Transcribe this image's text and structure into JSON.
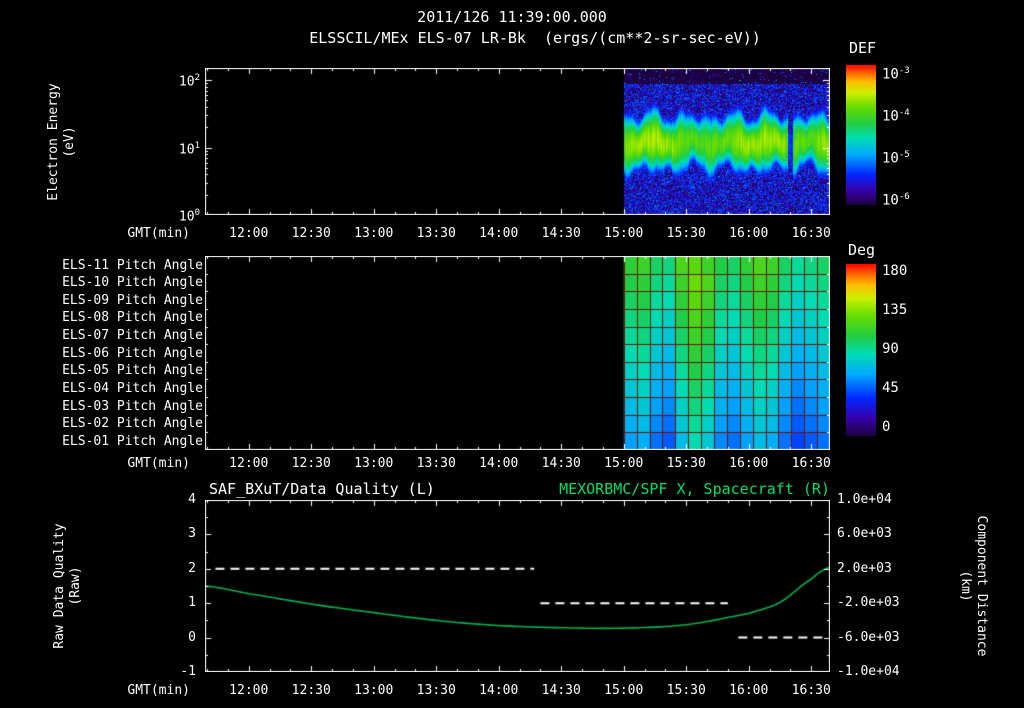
{
  "header": {
    "datetime": "2011/126 11:39:00.000",
    "subtitle": "ELSSCIL/MEx ELS-07 LR-Bk  (ergs/(cm**2-sr-sec-eV))"
  },
  "time_axis": {
    "label": "GMT(min)",
    "start": "11:39",
    "end": "16:39",
    "ticks": [
      "12:00",
      "12:30",
      "13:00",
      "13:30",
      "14:00",
      "14:30",
      "15:00",
      "15:30",
      "16:00",
      "16:30"
    ]
  },
  "colors": {
    "background": "#000000",
    "text": "#ffffff",
    "frame": "#ffffff",
    "green_title": "#00dd66",
    "green_curve": "#00b44c",
    "quality_line": "#ffffff",
    "pitch_grid": "#6b1600"
  },
  "colormap_stops": [
    [
      0,
      "#1c0040"
    ],
    [
      0.1,
      "#3800a8"
    ],
    [
      0.22,
      "#0028ff"
    ],
    [
      0.36,
      "#00aaff"
    ],
    [
      0.48,
      "#00ddb0"
    ],
    [
      0.58,
      "#22cc44"
    ],
    [
      0.7,
      "#66dd00"
    ],
    [
      0.8,
      "#ccee00"
    ],
    [
      0.88,
      "#ffbb00"
    ],
    [
      0.94,
      "#ff6600"
    ],
    [
      1,
      "#ff0000"
    ]
  ],
  "chart_data": [
    {
      "type": "heatmap",
      "name": "electron-energy-spectrogram",
      "title": "ELSSCIL/MEx ELS-07 LR-Bk",
      "units": "ergs/(cm**2-sr-sec-eV)",
      "ylabel_lines": [
        "Electron Energy",
        "(eV)"
      ],
      "yscale": "log",
      "ylim_ev": [
        1,
        150
      ],
      "ytick_exponents": [
        2,
        1,
        0
      ],
      "xlabel": "GMT(min)",
      "colorbar": {
        "label": "DEF",
        "scale": "log",
        "tick_exponents": [
          -3,
          -4,
          -5,
          -6
        ]
      },
      "coverage_start": "15:00",
      "features": {
        "band_center_ev": 12,
        "band_peak_def": 0.00014,
        "background_def": 1e-06,
        "dropout_time": "16:20"
      }
    },
    {
      "type": "heatmap",
      "name": "pitch-angle-grid",
      "rows": [
        "ELS-11 Pitch Angle",
        "ELS-10 Pitch Angle",
        "ELS-09 Pitch Angle",
        "ELS-08 Pitch Angle",
        "ELS-07 Pitch Angle",
        "ELS-06 Pitch Angle",
        "ELS-05 Pitch Angle",
        "ELS-04 Pitch Angle",
        "ELS-03 Pitch Angle",
        "ELS-02 Pitch Angle",
        "ELS-01 Pitch Angle"
      ],
      "xlabel": "GMT(min)",
      "colorbar": {
        "label": "Deg",
        "ticks": [
          180,
          135,
          90,
          45,
          0
        ]
      },
      "coverage_start": "15:00",
      "values_deg": [
        [
          110,
          115,
          100,
          95,
          120,
          125,
          115,
          105,
          100,
          110,
          120,
          115,
          100,
          90,
          95,
          100
        ],
        [
          105,
          110,
          95,
          90,
          115,
          130,
          120,
          100,
          95,
          105,
          115,
          110,
          95,
          85,
          90,
          95
        ],
        [
          100,
          105,
          90,
          85,
          110,
          125,
          115,
          95,
          90,
          100,
          110,
          105,
          90,
          80,
          85,
          90
        ],
        [
          95,
          100,
          85,
          80,
          105,
          120,
          110,
          90,
          85,
          95,
          105,
          100,
          85,
          75,
          80,
          85
        ],
        [
          90,
          95,
          80,
          75,
          100,
          115,
          105,
          85,
          80,
          90,
          100,
          95,
          80,
          70,
          75,
          80
        ],
        [
          85,
          90,
          75,
          70,
          95,
          110,
          100,
          80,
          75,
          85,
          95,
          90,
          75,
          65,
          70,
          75
        ],
        [
          80,
          85,
          70,
          65,
          90,
          105,
          95,
          75,
          70,
          80,
          90,
          85,
          70,
          60,
          65,
          70
        ],
        [
          75,
          80,
          65,
          60,
          85,
          100,
          90,
          70,
          65,
          75,
          85,
          80,
          65,
          55,
          60,
          65
        ],
        [
          70,
          75,
          60,
          55,
          80,
          95,
          85,
          65,
          60,
          70,
          80,
          75,
          60,
          50,
          55,
          60
        ],
        [
          65,
          70,
          55,
          50,
          75,
          90,
          80,
          60,
          55,
          65,
          75,
          70,
          55,
          45,
          50,
          55
        ],
        [
          60,
          65,
          50,
          45,
          70,
          85,
          75,
          55,
          50,
          60,
          70,
          65,
          50,
          40,
          45,
          50
        ]
      ]
    },
    {
      "type": "line",
      "name": "quality-and-spacecraft-x",
      "title_left": "SAF_BXuT/Data Quality (L)",
      "title_right": "MEXORBMC/SPF X, Spacecraft (R)",
      "xlabel": "GMT(min)",
      "ylabel_left_lines": [
        "Raw Data Quality",
        "(Raw)"
      ],
      "ylim_left": [
        -1,
        4
      ],
      "yticks_left": [
        4,
        3,
        2,
        1,
        0,
        -1
      ],
      "ylabel_right_lines": [
        "Component Distance",
        "(km)"
      ],
      "ylim_right": [
        -10000,
        10000
      ],
      "yticks_right": [
        "1.0e+04",
        "6.0e+03",
        "2.0e+03",
        "-2.0e+03",
        "-6.0e+03",
        "-1.0e+04"
      ],
      "series": [
        {
          "name": "Raw Data Quality",
          "axis": "left",
          "style": "dashed",
          "segments": [
            {
              "value": 2,
              "start": "11:44",
              "end": "14:17"
            },
            {
              "value": 1,
              "start": "14:20",
              "end": "15:50"
            },
            {
              "value": 0,
              "start": "15:55",
              "end": "16:37"
            }
          ]
        },
        {
          "name": "Spacecraft X",
          "axis": "right",
          "style": "solid",
          "t_min": [
            0,
            21,
            51,
            81,
            111,
            141,
            171,
            201,
            231,
            261,
            276,
            291,
            300
          ],
          "km": [
            0,
            -900,
            -2100,
            -3100,
            -4000,
            -4600,
            -4850,
            -4900,
            -4500,
            -3200,
            -1900,
            800,
            2200
          ]
        }
      ]
    }
  ]
}
